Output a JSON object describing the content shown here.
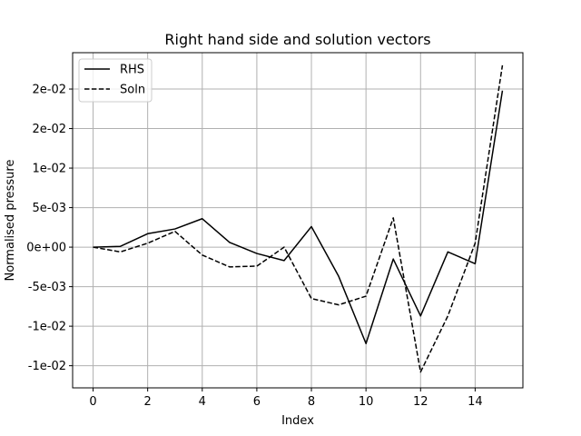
{
  "chart_data": {
    "type": "line",
    "title": "Right hand side and solution vectors",
    "xlabel": "Index",
    "ylabel": "Normalised pressure",
    "x": [
      0,
      1,
      2,
      3,
      4,
      5,
      6,
      7,
      8,
      9,
      10,
      11,
      12,
      13,
      14,
      15
    ],
    "xlim": [
      -0.75,
      15.75
    ],
    "ylim": [
      -0.0178,
      0.0246
    ],
    "x_ticks": [
      0,
      2,
      4,
      6,
      8,
      10,
      12,
      14
    ],
    "x_tick_labels": [
      "0",
      "2",
      "4",
      "6",
      "8",
      "10",
      "12",
      "14"
    ],
    "y_ticks": [
      -0.015,
      -0.01,
      -0.005,
      0,
      0.005,
      0.01,
      0.015,
      0.02
    ],
    "y_tick_labels": [
      "-1e-02",
      "-1e-02",
      "-5e-03",
      "0e+00",
      "5e-03",
      "1e-02",
      "2e-02",
      "2e-02"
    ],
    "grid": true,
    "legend_position": "top-left",
    "series": [
      {
        "name": "RHS",
        "style": "solid",
        "color": "#000000",
        "values": [
          0.0,
          0.0001,
          0.0017,
          0.0023,
          0.0036,
          0.0006,
          -0.0008,
          -0.0017,
          0.0026,
          -0.0037,
          -0.0122,
          -0.0015,
          -0.0087,
          -0.0006,
          -0.0021,
          0.0198
        ]
      },
      {
        "name": "Soln",
        "style": "dashed",
        "color": "#000000",
        "values": [
          0.0,
          -0.0006,
          0.0005,
          0.002,
          -0.001,
          -0.0025,
          -0.0024,
          0.0,
          -0.0065,
          -0.0073,
          -0.0062,
          0.0037,
          -0.0158,
          -0.0087,
          0.0005,
          0.023
        ]
      }
    ]
  }
}
